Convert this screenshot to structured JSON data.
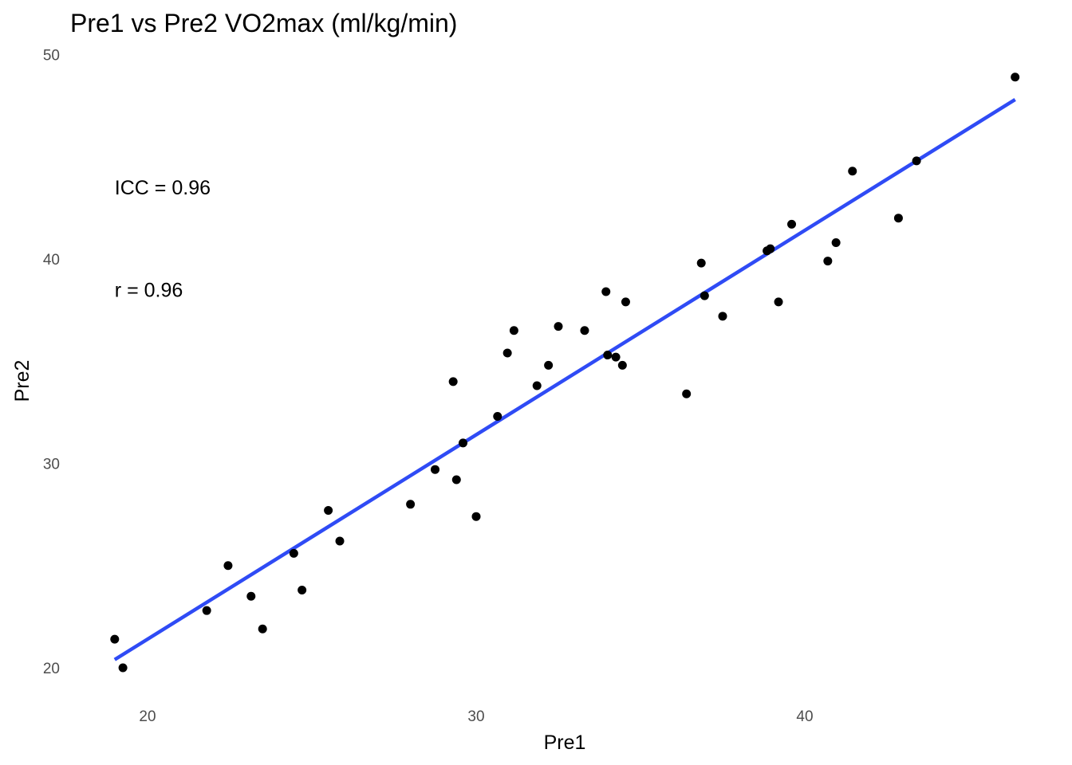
{
  "chart_data": {
    "type": "scatter",
    "title": "Pre1 vs Pre2 VO2max (ml/kg/min)",
    "xlabel": "Pre1",
    "ylabel": "Pre2",
    "xlim": [
      19,
      46
    ],
    "ylim": [
      20,
      49
    ],
    "x_ticks": [
      20,
      30,
      40
    ],
    "x_tick_labels": [
      "20",
      "30",
      "40"
    ],
    "y_ticks": [
      20,
      30,
      40,
      50
    ],
    "y_tick_labels": [
      "20",
      "30",
      "40",
      "50"
    ],
    "grid": false,
    "point_color": "#000000",
    "line_color": "#2F4BF5",
    "annotations": [
      {
        "text": "ICC = 0.96",
        "x": 19.0,
        "y": 43.5
      },
      {
        "text": "r = 0.96",
        "x": 19.0,
        "y": 38.5
      }
    ],
    "fit_line": {
      "x": [
        19.0,
        46.4
      ],
      "y": [
        20.4,
        47.8
      ]
    },
    "points": [
      {
        "x": 19.0,
        "y": 21.4
      },
      {
        "x": 19.25,
        "y": 20.0
      },
      {
        "x": 21.8,
        "y": 22.8
      },
      {
        "x": 22.45,
        "y": 25.0
      },
      {
        "x": 23.15,
        "y": 23.5
      },
      {
        "x": 23.5,
        "y": 21.9
      },
      {
        "x": 24.45,
        "y": 25.6
      },
      {
        "x": 24.7,
        "y": 23.8
      },
      {
        "x": 25.5,
        "y": 27.7
      },
      {
        "x": 25.85,
        "y": 26.2
      },
      {
        "x": 28.0,
        "y": 28.0
      },
      {
        "x": 28.75,
        "y": 29.7
      },
      {
        "x": 29.3,
        "y": 34.0
      },
      {
        "x": 29.4,
        "y": 29.2
      },
      {
        "x": 29.6,
        "y": 31.0
      },
      {
        "x": 30.0,
        "y": 27.4
      },
      {
        "x": 30.65,
        "y": 32.3
      },
      {
        "x": 30.95,
        "y": 35.4
      },
      {
        "x": 31.15,
        "y": 36.5
      },
      {
        "x": 31.85,
        "y": 33.8
      },
      {
        "x": 32.2,
        "y": 34.8
      },
      {
        "x": 32.5,
        "y": 36.7
      },
      {
        "x": 33.3,
        "y": 36.5
      },
      {
        "x": 33.95,
        "y": 38.4
      },
      {
        "x": 34.0,
        "y": 35.3
      },
      {
        "x": 34.25,
        "y": 35.2
      },
      {
        "x": 34.45,
        "y": 34.8
      },
      {
        "x": 34.55,
        "y": 37.9
      },
      {
        "x": 36.4,
        "y": 33.4
      },
      {
        "x": 36.85,
        "y": 39.8
      },
      {
        "x": 36.95,
        "y": 38.2
      },
      {
        "x": 37.5,
        "y": 37.2
      },
      {
        "x": 38.85,
        "y": 40.4
      },
      {
        "x": 38.95,
        "y": 40.5
      },
      {
        "x": 39.2,
        "y": 37.9
      },
      {
        "x": 39.6,
        "y": 41.7
      },
      {
        "x": 40.7,
        "y": 39.9
      },
      {
        "x": 40.95,
        "y": 40.8
      },
      {
        "x": 41.45,
        "y": 44.3
      },
      {
        "x": 42.85,
        "y": 42.0
      },
      {
        "x": 43.4,
        "y": 44.8
      },
      {
        "x": 46.4,
        "y": 48.9
      }
    ]
  }
}
